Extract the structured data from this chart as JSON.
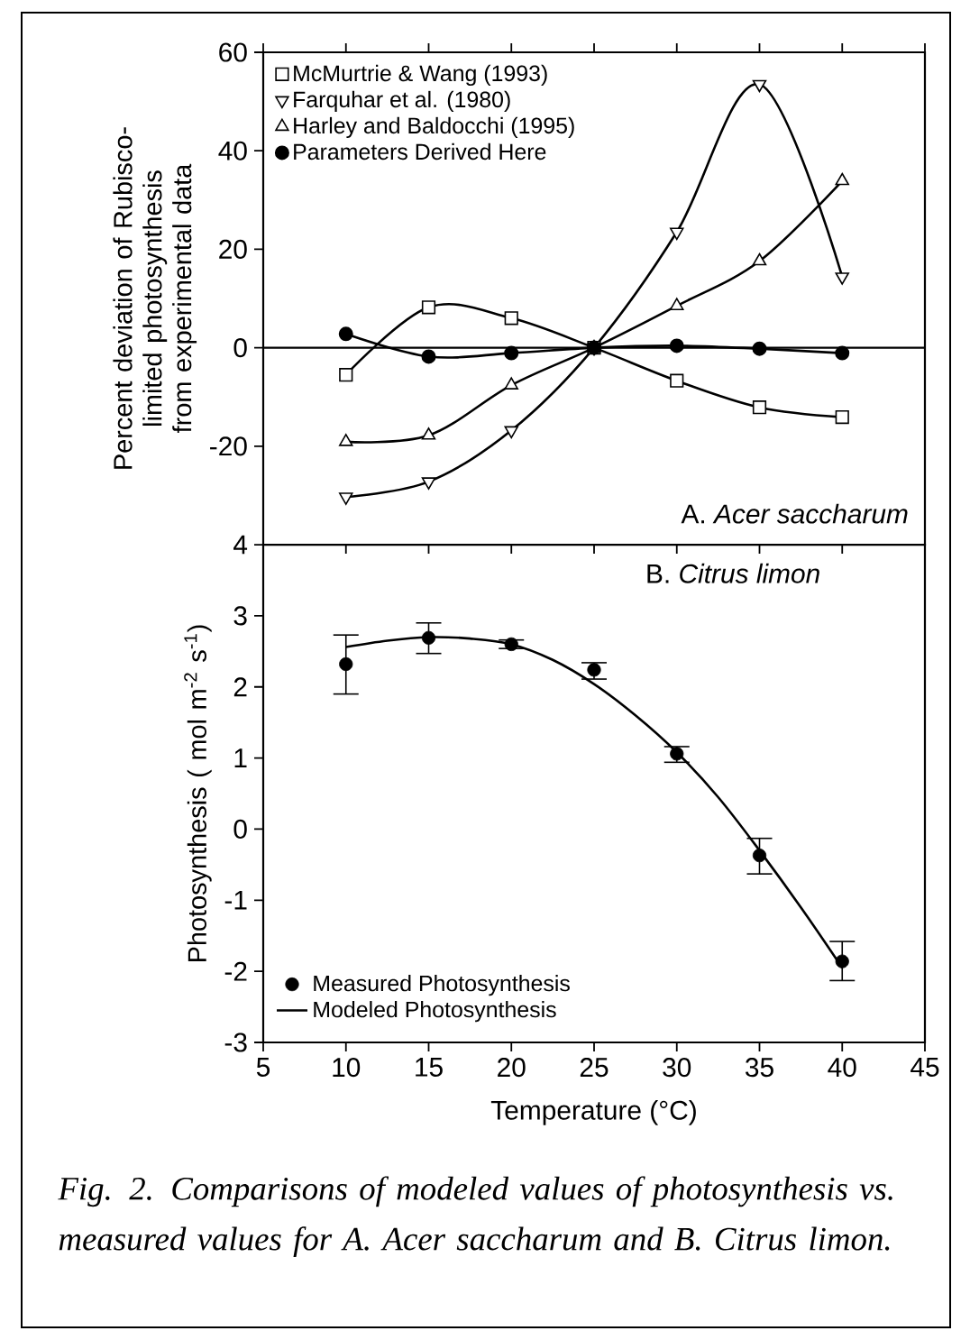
{
  "chart_data": [
    {
      "type": "line",
      "ylabel": "Percent deviation of Rubisco-limited photosynthesis from experimental data",
      "x": [
        10,
        15,
        20,
        25,
        30,
        35,
        40
      ],
      "xlim": [
        5,
        45
      ],
      "xticks": [
        5,
        10,
        15,
        20,
        25,
        30,
        35,
        40,
        45
      ],
      "ylim": [
        -40,
        60
      ],
      "yticks": [
        -20,
        0,
        20,
        40,
        60
      ],
      "tick_labels": "y",
      "legend": "top left",
      "line_style": "solid",
      "series": [
        {
          "name": "McMurtrie & Wang (1993)",
          "color": "#000000",
          "marker": "square",
          "values": [
            -5.5,
            8.2,
            6,
            0,
            -6.7,
            -12.1,
            -14.1
          ]
        },
        {
          "name": "Farquhar et al. (1980)",
          "color": "#000000",
          "marker": "triangle-down",
          "values": [
            -30.3,
            -27.2,
            -16.8,
            0,
            23.5,
            53.5,
            14.4
          ]
        },
        {
          "name": "Harley and Baldocchi (1995)",
          "color": "#000000",
          "marker": "triangle",
          "values": [
            -19.1,
            -17.8,
            -7.6,
            0,
            8.5,
            17.6,
            33.9
          ]
        },
        {
          "name": "Parameters Derived Here",
          "color": "#000000",
          "marker": "circle",
          "values": [
            2.8,
            -1.8,
            -1.1,
            0,
            0.4,
            -0.2,
            -1.1
          ]
        }
      ],
      "ref_lines": [
        {
          "axis": "y",
          "value": 0,
          "color": "#000000"
        }
      ],
      "annotations": [
        "A. *Acer saccharum*"
      ]
    },
    {
      "type": "scatter",
      "xlabel": "Temperature (°C)",
      "ylabel": "Photosynthesis (  mol m$^{-2}$ s$^{-1}$)",
      "xlim": [
        5,
        45
      ],
      "xticks": [
        5,
        10,
        15,
        20,
        25,
        30,
        35,
        40,
        45
      ],
      "ylim": [
        -3,
        4
      ],
      "yticks": [
        -3,
        -2,
        -1,
        0,
        1,
        2,
        3,
        4
      ],
      "legend": "bottom left",
      "series": [
        {
          "name": "Measured Photosynthesis",
          "type": "scatter",
          "marker": "circle",
          "color": "#000000",
          "x": [
            10,
            15,
            20,
            25,
            30,
            35,
            40
          ],
          "values": [
            2.32,
            2.69,
            2.6,
            2.24,
            1.06,
            -0.37,
            -1.86
          ],
          "errors": [
            [
              1.9,
              2.73
            ],
            [
              2.47,
              2.9
            ],
            [
              2.54,
              2.66
            ],
            [
              2.11,
              2.34
            ],
            [
              0.94,
              1.16
            ],
            [
              -0.63,
              -0.13
            ],
            [
              -2.13,
              -1.58
            ]
          ]
        },
        {
          "name": "Modeled Photosynthesis",
          "type": "line",
          "marker": "none",
          "line_style": "solid",
          "color": "#000000",
          "x": [
            10,
            12.5,
            15,
            17.5,
            20,
            22.5,
            25,
            27.5,
            30,
            32.5,
            35,
            37.5,
            40
          ],
          "values": [
            2.56,
            2.65,
            2.7,
            2.68,
            2.6,
            2.38,
            2.04,
            1.6,
            1.08,
            0.45,
            -0.3,
            -1.1,
            -1.95
          ]
        }
      ],
      "annotations": [
        "B. *Citrus limon*",
        "Fig. 2. Comparisons of modeled values of photosynthesis vs. measured values for A. Acer saccharum and B. Citrus limon."
      ]
    }
  ]
}
